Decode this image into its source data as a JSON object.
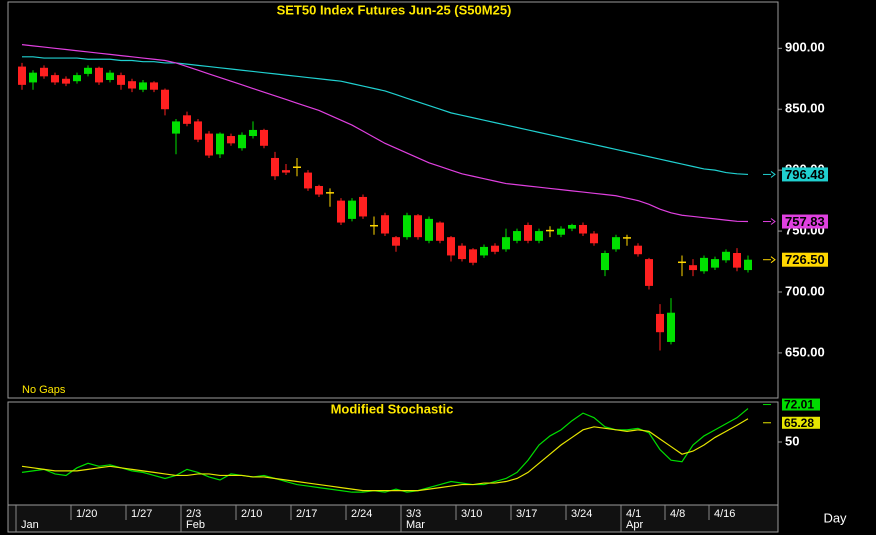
{
  "chart_data": [
    {
      "type": "candlestick",
      "title": "SET50 Index Futures Jun-25 (S50M25)",
      "annotation": "No Gaps",
      "xlabel": "Day",
      "categories": [
        null,
        null,
        null,
        null,
        null,
        "1/20",
        null,
        null,
        null,
        null,
        "1/27",
        null,
        null,
        null,
        null,
        "2/3",
        null,
        null,
        null,
        null,
        "2/10",
        null,
        null,
        null,
        null,
        "2/17",
        null,
        null,
        null,
        null,
        "2/24",
        null,
        null,
        null,
        null,
        "3/3",
        null,
        null,
        null,
        null,
        "3/10",
        null,
        null,
        null,
        null,
        "3/17",
        null,
        null,
        null,
        null,
        "3/24",
        null,
        null,
        null,
        null,
        "4/1",
        null,
        null,
        null,
        "4/8",
        null,
        null,
        null,
        "4/16",
        null,
        null,
        null
      ],
      "months": [
        "Jan",
        null,
        null,
        null,
        null,
        null,
        null,
        null,
        null,
        null,
        null,
        null,
        null,
        null,
        null,
        "Feb",
        null,
        null,
        null,
        null,
        null,
        null,
        null,
        null,
        null,
        null,
        null,
        null,
        null,
        null,
        null,
        null,
        null,
        null,
        null,
        "Mar",
        null,
        null,
        null,
        null,
        null,
        null,
        null,
        null,
        null,
        null,
        null,
        null,
        null,
        null,
        null,
        null,
        null,
        null,
        null,
        "Apr",
        null,
        null,
        null,
        null,
        null,
        null,
        null,
        null,
        null,
        null,
        null
      ],
      "open": [
        885,
        872,
        884,
        878,
        875,
        873,
        879,
        884,
        874,
        878,
        873,
        866,
        872,
        866,
        830,
        845,
        840,
        830,
        813,
        828,
        818,
        828,
        833,
        810,
        800,
        803,
        798,
        787,
        782,
        775,
        760,
        778,
        755,
        763,
        745,
        745,
        763,
        742,
        757,
        745,
        738,
        735,
        730,
        738,
        735,
        742,
        755,
        742,
        751,
        747,
        752,
        755,
        748,
        718,
        735,
        745,
        738,
        727,
        682,
        659,
        725,
        722,
        717,
        720,
        726,
        732,
        718
      ],
      "high": [
        888,
        882,
        886,
        880,
        877,
        880,
        886,
        885,
        882,
        880,
        875,
        874,
        873,
        867,
        842,
        848,
        842,
        832,
        831,
        830,
        831,
        840,
        834,
        815,
        805,
        810,
        800,
        788,
        785,
        777,
        777,
        780,
        762,
        765,
        746,
        765,
        764,
        762,
        758,
        746,
        740,
        736,
        739,
        740,
        752,
        752,
        757,
        752,
        754,
        754,
        756,
        757,
        750,
        734,
        747,
        747,
        740,
        728,
        690,
        695,
        730,
        727,
        730,
        729,
        735,
        736,
        730
      ],
      "low": [
        866,
        866,
        875,
        870,
        869,
        871,
        877,
        870,
        872,
        866,
        864,
        864,
        864,
        845,
        813,
        836,
        823,
        810,
        810,
        820,
        816,
        826,
        818,
        792,
        796,
        795,
        783,
        778,
        770,
        755,
        758,
        760,
        747,
        746,
        733,
        743,
        743,
        740,
        740,
        725,
        725,
        722,
        728,
        731,
        733,
        740,
        740,
        740,
        745,
        745,
        750,
        746,
        738,
        713,
        733,
        738,
        729,
        702,
        652,
        657,
        713,
        713,
        715,
        718,
        724,
        717,
        716
      ],
      "close": [
        870,
        880,
        877,
        872,
        871,
        878,
        884,
        872,
        880,
        870,
        867,
        872,
        866,
        850,
        840,
        838,
        825,
        812,
        830,
        822,
        829,
        833,
        820,
        795,
        798,
        803,
        785,
        780,
        782,
        757,
        775,
        762,
        755,
        748,
        738,
        763,
        745,
        760,
        742,
        730,
        727,
        724,
        737,
        733,
        745,
        750,
        742,
        750,
        751,
        752,
        755,
        748,
        740,
        732,
        745,
        745,
        731,
        705,
        667,
        683,
        725,
        718,
        728,
        727,
        733,
        720,
        726.5
      ],
      "close_label": "726.50",
      "up_color": "#00e000",
      "down_color": "#ff2020",
      "flat_color": "#ffd700",
      "series": [
        {
          "color": "#20d0d0",
          "last_label": "796.48",
          "values": [
            893,
            893,
            892,
            892,
            892,
            892,
            891,
            891,
            891,
            890,
            890,
            889,
            889,
            888,
            888,
            887,
            886,
            885,
            884,
            883,
            882,
            881,
            880,
            879,
            878,
            877,
            876,
            875,
            874,
            873,
            871,
            869,
            867,
            865,
            862,
            859,
            856,
            853,
            850,
            847,
            845,
            843,
            841,
            839,
            837,
            835,
            833,
            831,
            829,
            827,
            825,
            823,
            821,
            819,
            817,
            815,
            813,
            811,
            809,
            807,
            805,
            803,
            801,
            800,
            798,
            797,
            796.48
          ]
        },
        {
          "color": "#e040e0",
          "last_label": "757.83",
          "values": [
            903,
            902,
            901,
            900,
            899,
            898,
            897,
            896,
            895,
            894,
            893,
            892,
            891,
            890,
            888,
            885,
            882,
            879,
            876,
            873,
            870,
            867,
            864,
            861,
            858,
            855,
            852,
            849,
            845,
            841,
            837,
            832,
            827,
            822,
            818,
            814,
            810,
            806,
            803,
            800,
            797,
            795,
            793,
            791,
            789,
            788,
            787,
            786,
            785,
            784,
            783,
            782,
            781,
            780,
            779,
            777,
            775,
            772,
            768,
            765,
            763,
            762,
            761,
            760,
            759,
            758,
            757.83
          ]
        }
      ],
      "ylim": [
        613,
        938
      ],
      "yticks": [
        {
          "value": 650,
          "label": "650.00"
        },
        {
          "value": 700,
          "label": "700.00"
        },
        {
          "value": 750,
          "label": "750.00"
        },
        {
          "value": 800,
          "label": "800.00"
        },
        {
          "value": 850,
          "label": "850.00"
        },
        {
          "value": 900,
          "label": "900.00"
        }
      ]
    },
    {
      "type": "line",
      "title": "Modified Stochastic",
      "series": [
        {
          "color": "#00dd00",
          "last_label": "72.01",
          "values": [
            30,
            31,
            32,
            29,
            28,
            33,
            36,
            34,
            35,
            33,
            31,
            30,
            28,
            26,
            28,
            32,
            30,
            27,
            25,
            29,
            28,
            27,
            28,
            26,
            24,
            22,
            21,
            20,
            19,
            18,
            17,
            17,
            18,
            17,
            19,
            17,
            18,
            20,
            22,
            24,
            23,
            22,
            22,
            24,
            26,
            30,
            38,
            48,
            54,
            58,
            64,
            69,
            66,
            60,
            58,
            58,
            59,
            56,
            45,
            38,
            37,
            48,
            54,
            58,
            62,
            66,
            72.01
          ]
        },
        {
          "color": "#e6e600",
          "last_label": "65.28",
          "values": [
            34,
            33,
            32,
            31,
            31,
            31,
            32,
            33,
            34,
            33,
            32,
            31,
            30,
            29,
            28,
            28,
            29,
            29,
            28,
            28,
            28,
            27,
            27,
            26,
            25,
            24,
            23,
            22,
            21,
            20,
            19,
            18,
            18,
            18,
            18,
            18,
            18,
            19,
            20,
            21,
            22,
            22,
            23,
            23,
            24,
            26,
            30,
            36,
            42,
            48,
            53,
            58,
            60,
            59,
            58,
            57,
            58,
            57,
            52,
            47,
            42,
            44,
            48,
            53,
            57,
            61,
            65.28
          ]
        }
      ],
      "ylim": [
        0,
        75
      ],
      "yticks": [
        50
      ]
    }
  ]
}
